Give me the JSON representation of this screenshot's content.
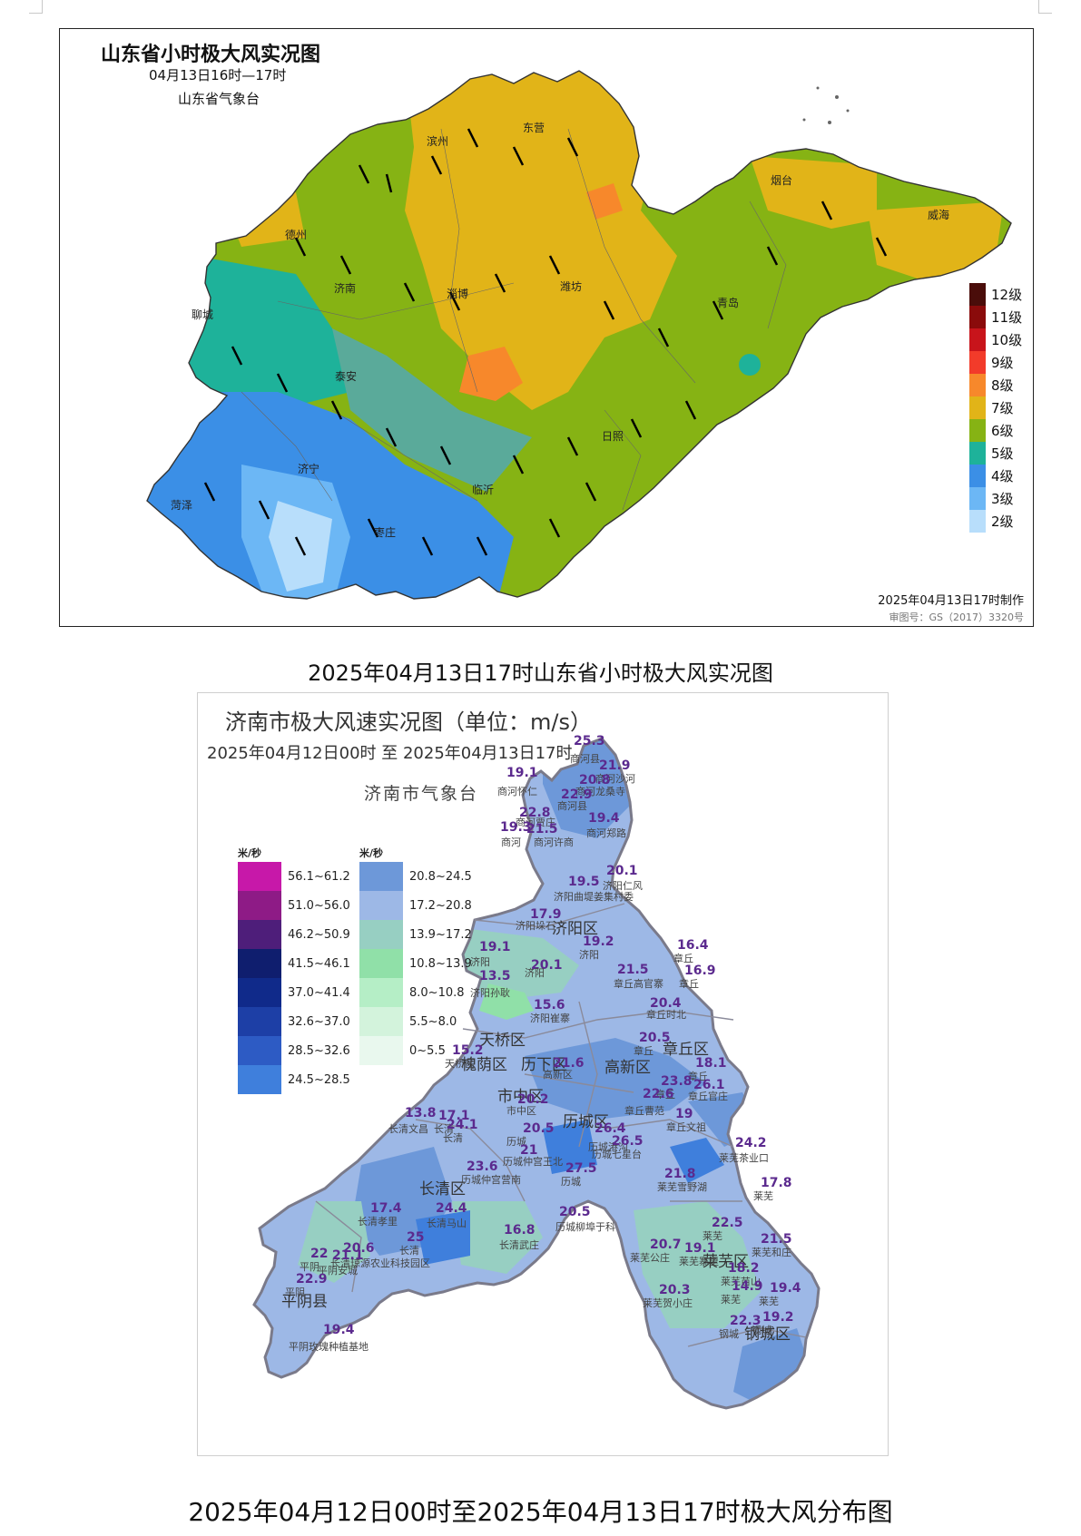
{
  "map1": {
    "title": "山东省小时极大风实况图",
    "period": "04月13日16时—17时",
    "organization": "山东省气象台",
    "made_time": "2025年04月13日17时制作",
    "approval": "审图号：GS（2017）3320号",
    "cities": [
      "滨州",
      "东营",
      "德州",
      "烟台",
      "威海",
      "聊城",
      "济南",
      "淄博",
      "潍坊",
      "青岛",
      "泰安",
      "日照",
      "临沂",
      "菏泽",
      "济宁",
      "枣庄"
    ],
    "legend": [
      {
        "label": "12级",
        "color": "#4a0d0a"
      },
      {
        "label": "11级",
        "color": "#8a0b0b"
      },
      {
        "label": "10级",
        "color": "#c8141b"
      },
      {
        "label": "9级",
        "color": "#f23b2a"
      },
      {
        "label": "8级",
        "color": "#f7882b"
      },
      {
        "label": "7级",
        "color": "#e1b418"
      },
      {
        "label": "6级",
        "color": "#86b314"
      },
      {
        "label": "5级",
        "color": "#1eb29a"
      },
      {
        "label": "4级",
        "color": "#3b8fe6"
      },
      {
        "label": "3级",
        "color": "#6cb7f5"
      },
      {
        "label": "2级",
        "color": "#b8defb"
      }
    ]
  },
  "caption1": "2025年04月13日17时山东省小时极大风实况图",
  "map2": {
    "title": "济南市极大风速实况图（单位：m/s）",
    "period": "2025年04月12日00时   至   2025年04月13日17时",
    "organization": "济南市气象台",
    "legend_unit": "米/秒",
    "legend_left": [
      {
        "label": "56.1~61.2",
        "color": "#c718a9"
      },
      {
        "label": "51.0~56.0",
        "color": "#8e1b86"
      },
      {
        "label": "46.2~50.9",
        "color": "#4e1e7a"
      },
      {
        "label": "41.5~46.1",
        "color": "#0f1e6e"
      },
      {
        "label": "37.0~41.4",
        "color": "#102a8a"
      },
      {
        "label": "32.6~37.0",
        "color": "#1d3fa6"
      },
      {
        "label": "28.5~32.6",
        "color": "#2d5bc4"
      },
      {
        "label": "24.5~28.5",
        "color": "#3f7fdc"
      }
    ],
    "legend_right": [
      {
        "label": "20.8~24.5",
        "color": "#6d98d9"
      },
      {
        "label": "17.2~20.8",
        "color": "#9db8e6"
      },
      {
        "label": "13.9~17.2",
        "color": "#97cfc2"
      },
      {
        "label": "10.8~13.9",
        "color": "#90e0a8"
      },
      {
        "label": "8.0~10.8",
        "color": "#b5eec6"
      },
      {
        "label": "5.5~8.0",
        "color": "#d3f3dc"
      },
      {
        "label": "0~5.5",
        "color": "#e9f8ee"
      }
    ],
    "districts": [
      "济阳区",
      "天桥区",
      "槐荫区",
      "市中区",
      "历下区",
      "历城区",
      "高新区",
      "章丘区",
      "长清区",
      "平阴县",
      "莱芜区",
      "钢城区"
    ],
    "stations": [
      {
        "v": "25.3",
        "name": "商河县"
      },
      {
        "v": "21.9",
        "name": "商河沙河"
      },
      {
        "v": "20.8",
        "name": "商河龙桑寺"
      },
      {
        "v": "19.1",
        "name": "商河怀仁"
      },
      {
        "v": "22.9",
        "name": "商河县"
      },
      {
        "v": "22.8",
        "name": "商河贾庄"
      },
      {
        "v": "19.3",
        "name": "商河"
      },
      {
        "v": "21.5",
        "name": "商河许商"
      },
      {
        "v": "19.4",
        "name": "商河郑路"
      },
      {
        "v": "19.5",
        "name": "济阳曲堤姜集村委"
      },
      {
        "v": "20.1",
        "name": "济阳仁风"
      },
      {
        "v": "17.9",
        "name": "济阳垛石"
      },
      {
        "v": "19.1",
        "name": "济阳"
      },
      {
        "v": "19.2",
        "name": "济阳"
      },
      {
        "v": "20.1",
        "name": "济阳"
      },
      {
        "v": "21.5",
        "name": "章丘高官寨"
      },
      {
        "v": "16.4",
        "name": "章丘"
      },
      {
        "v": "16.9",
        "name": "章丘"
      },
      {
        "v": "13.5",
        "name": "济阳孙耿"
      },
      {
        "v": "15.6",
        "name": "济阳崔寨"
      },
      {
        "v": "20.4",
        "name": "章丘时北"
      },
      {
        "v": "20.5",
        "name": "章丘"
      },
      {
        "v": "15.2",
        "name": "天桥区"
      },
      {
        "v": "21.6",
        "name": "高新区"
      },
      {
        "v": "18.1",
        "name": "章丘"
      },
      {
        "v": "23.8",
        "name": "章丘"
      },
      {
        "v": "26.1",
        "name": "章丘官庄"
      },
      {
        "v": "22.6",
        "name": "章丘曹范"
      },
      {
        "v": "19",
        "name": "章丘文祖"
      },
      {
        "v": "20.2",
        "name": "市中区"
      },
      {
        "v": "13.8",
        "name": "长清文昌"
      },
      {
        "v": "17.1",
        "name": "长清"
      },
      {
        "v": "24.1",
        "name": "长清"
      },
      {
        "v": "20.5",
        "name": "历城"
      },
      {
        "v": "26.4",
        "name": "历城港沟"
      },
      {
        "v": "26.5",
        "name": "历城七星台"
      },
      {
        "v": "24.2",
        "name": "莱芜茶业口"
      },
      {
        "v": "21",
        "name": "历城仲宫王北"
      },
      {
        "v": "23.6",
        "name": "历城仲宫营南"
      },
      {
        "v": "27.5",
        "name": "历城"
      },
      {
        "v": "21.8",
        "name": "莱芜雪野湖"
      },
      {
        "v": "17.8",
        "name": "莱芜"
      },
      {
        "v": "17.4",
        "name": "长清孝里"
      },
      {
        "v": "24.4",
        "name": "长清马山"
      },
      {
        "v": "20.5",
        "name": "历城柳埠于科"
      },
      {
        "v": "16.8",
        "name": "长清武庄"
      },
      {
        "v": "22.5",
        "name": "莱芜"
      },
      {
        "v": "21.5",
        "name": "莱芜和庄"
      },
      {
        "v": "25",
        "name": "长清"
      },
      {
        "v": "20.6",
        "name": "长清琼源农业科技园区"
      },
      {
        "v": "20.7",
        "name": "莱芜公庄"
      },
      {
        "v": "19.1",
        "name": "莱芜寨里"
      },
      {
        "v": "18.2",
        "name": "莱芜苗山"
      },
      {
        "v": "22",
        "name": "平阴"
      },
      {
        "v": "21.1",
        "name": "平阴安城"
      },
      {
        "v": "22.9",
        "name": "平阴"
      },
      {
        "v": "20.3",
        "name": "莱芜贺小庄"
      },
      {
        "v": "14.9",
        "name": "莱芜"
      },
      {
        "v": "19.4",
        "name": "莱芜"
      },
      {
        "v": "22.3",
        "name": "钢城"
      },
      {
        "v": "19.2",
        "name": "钢城"
      },
      {
        "v": "19.4",
        "name": "平阴玫瑰种植基地"
      }
    ]
  },
  "caption2": "2025年04月12日00时至2025年04月13日17时极大风分布图"
}
